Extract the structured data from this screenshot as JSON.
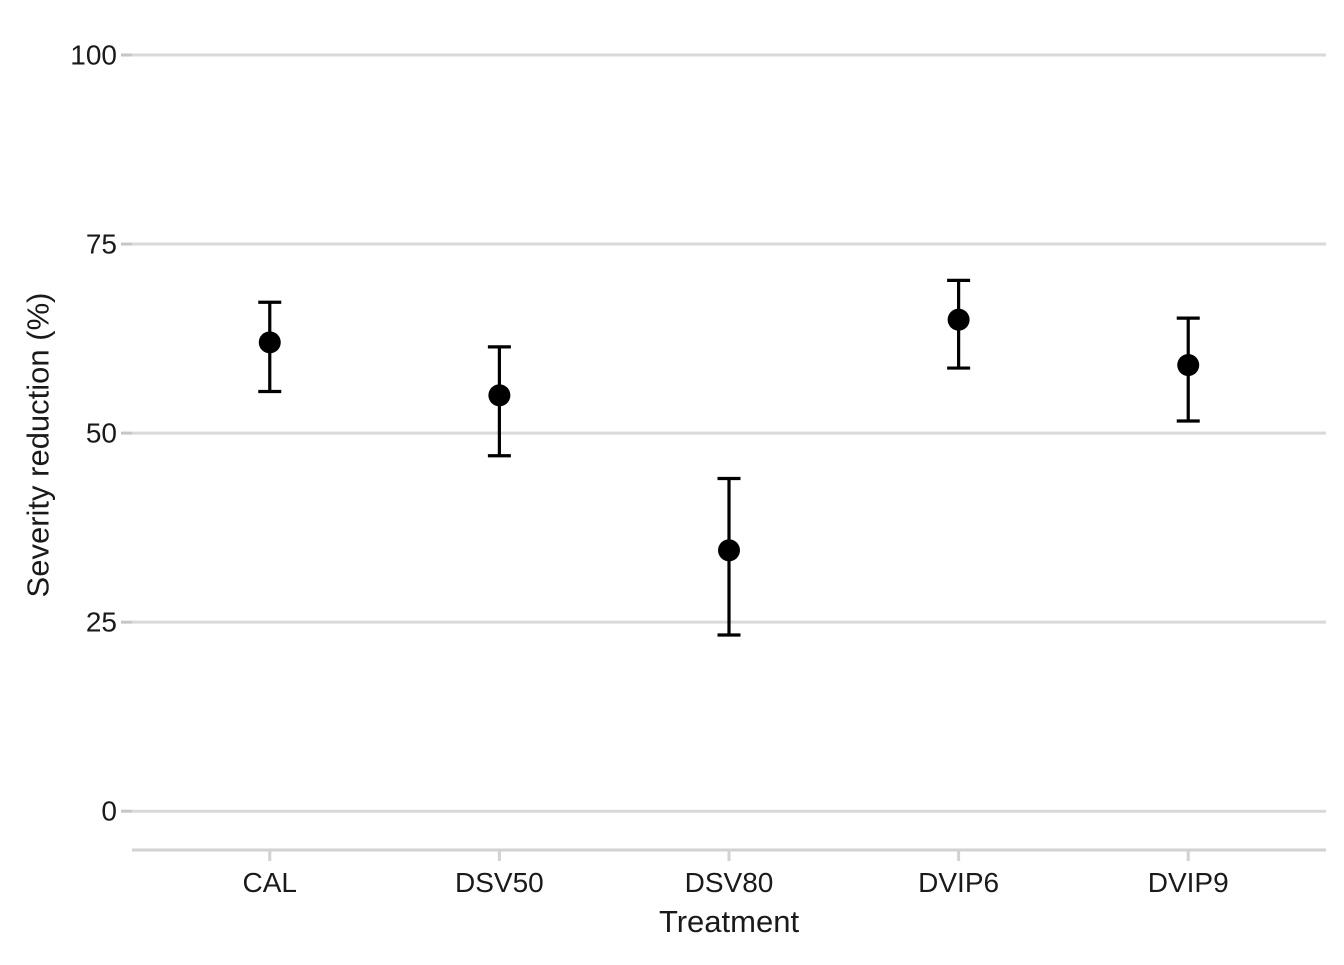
{
  "chart_data": {
    "type": "scatter",
    "subtype": "point-estimates-with-error-bars",
    "title": "",
    "xlabel": "Treatment",
    "ylabel": "Severity reduction (%)",
    "categories": [
      "CAL",
      "DSV50",
      "DSV80",
      "DVIP6",
      "DVIP9"
    ],
    "series": [
      {
        "name": "Severity reduction",
        "values": [
          62,
          55,
          34.5,
          65,
          59
        ],
        "ci_lower": [
          55.5,
          47,
          23.3,
          58.6,
          51.6
        ],
        "ci_upper": [
          67.3,
          61.4,
          44,
          70.2,
          65.2
        ]
      }
    ],
    "ylim": [
      0,
      100
    ],
    "yticks": [
      0,
      25,
      50,
      75,
      100
    ],
    "grid": "horizontal-only",
    "legend": "none",
    "marker": "filled-circle",
    "error_bars": true,
    "colors": {
      "point": "#000000",
      "error_bar": "#000000",
      "gridline": "#d9d9d9",
      "axis_line": "#d2d2d2",
      "tick_mark": "#c6c6c6",
      "text": "#1a1a1a",
      "background": "#ffffff"
    }
  }
}
